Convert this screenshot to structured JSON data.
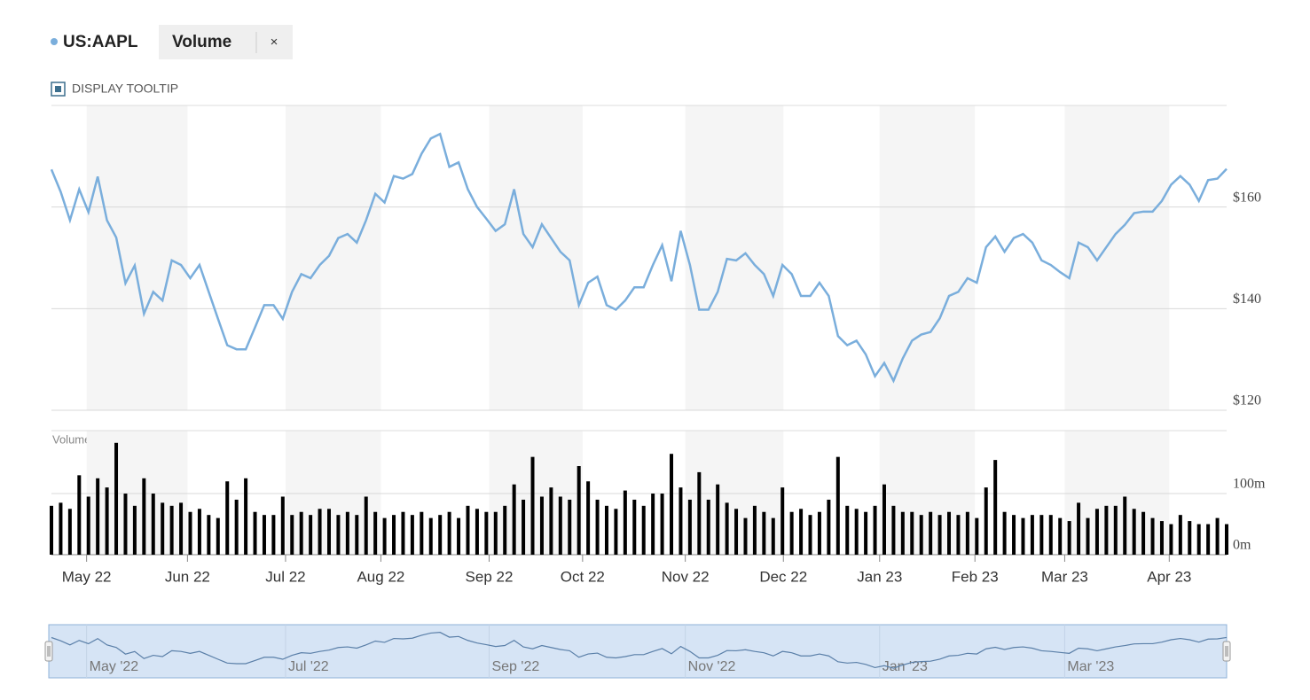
{
  "controls": {
    "close_icon": "×",
    "tooltip_toggle": "DISPLAY TOOLTIP"
  },
  "chart_data": [
    {
      "type": "line",
      "series": [
        {
          "name": "US:AAPL",
          "color": "#7aaedc",
          "values": [
            167.4,
            163,
            157.4,
            163.5,
            159,
            166,
            157.4,
            154,
            145,
            148.5,
            139,
            143.3,
            141.6,
            149.5,
            148.6,
            146,
            148.6,
            143.3,
            138,
            132.8,
            132,
            132,
            136.3,
            140.7,
            140.7,
            138,
            143.3,
            146.8,
            146,
            148.6,
            150.4,
            153.9,
            154.7,
            153,
            157.4,
            162.6,
            160.9,
            166.1,
            165.6,
            166.5,
            170.5,
            173.5,
            174.4,
            167.9,
            168.8,
            163.5,
            160,
            157.7,
            155.3,
            156.6,
            163.5,
            154.7,
            152.1,
            156.6,
            153.9,
            151.2,
            149.5,
            140.7,
            145.1,
            146.3,
            140.7,
            139.8,
            141.6,
            144.2,
            144.2,
            148.6,
            152.5,
            145.4,
            155.3,
            148.6,
            139.8,
            139.8,
            143.3,
            149.8,
            149.5,
            150.9,
            148.6,
            146.8,
            142.5,
            148.6,
            146.8,
            142.5,
            142.5,
            145.1,
            142.5,
            134.6,
            132.8,
            133.7,
            131,
            126.7,
            129.3,
            125.8,
            130.2,
            133.7,
            134.9,
            135.4,
            138.1,
            142.5,
            143.3,
            146,
            145.1,
            152.1,
            154.2,
            151.2,
            153.9,
            154.7,
            153,
            149.5,
            148.6,
            147.2,
            146,
            153,
            152.1,
            149.5,
            152.1,
            154.7,
            156.5,
            158.8,
            159.1,
            159.1,
            161.2,
            164.4,
            166.1,
            164.4,
            161.2,
            165.3,
            165.6,
            167.5
          ]
        }
      ],
      "x": [
        0,
        1,
        2,
        3,
        4,
        5,
        6,
        7,
        8,
        9,
        10,
        11,
        12,
        13,
        14,
        15,
        16,
        17,
        18,
        19,
        20,
        21,
        22,
        23,
        24,
        25,
        26,
        27,
        28,
        29,
        30,
        31,
        32,
        33,
        34,
        35,
        36,
        37,
        38,
        39,
        40,
        41,
        42,
        43,
        44,
        45,
        46,
        47,
        48,
        49,
        50,
        51,
        52,
        53,
        54,
        55,
        56,
        57,
        58,
        59,
        60,
        61,
        62,
        63,
        64,
        65,
        66,
        67,
        68,
        69,
        70,
        71,
        72,
        73,
        74,
        75,
        76,
        77,
        78,
        79,
        80,
        81,
        82,
        83,
        84,
        85,
        86,
        87,
        88,
        89,
        90,
        91,
        92,
        93,
        94,
        95,
        96,
        97,
        98,
        99,
        100,
        101,
        102,
        103,
        104,
        105,
        106,
        107,
        108,
        109,
        110,
        111,
        112,
        113,
        114,
        115,
        116,
        117,
        118,
        119,
        120,
        121,
        122,
        123,
        124,
        125,
        126,
        127
      ],
      "xlim": [
        0,
        127
      ],
      "xticks": [
        {
          "value": 3.8,
          "label": "May 22"
        },
        {
          "value": 14.7,
          "label": "Jun 22"
        },
        {
          "value": 25.3,
          "label": "Jul 22"
        },
        {
          "value": 35.6,
          "label": "Aug 22"
        },
        {
          "value": 47.3,
          "label": "Sep 22"
        },
        {
          "value": 57.4,
          "label": "Oct 22"
        },
        {
          "value": 68.5,
          "label": "Nov 22"
        },
        {
          "value": 79.1,
          "label": "Dec 22"
        },
        {
          "value": 89.5,
          "label": "Jan 23"
        },
        {
          "value": 99.8,
          "label": "Feb 23"
        },
        {
          "value": 109.5,
          "label": "Mar 23"
        },
        {
          "value": 120.8,
          "label": "Apr 23"
        }
      ],
      "navigator_xticks": [
        {
          "value": 3.8,
          "label": "May '22"
        },
        {
          "value": 25.3,
          "label": "Jul '22"
        },
        {
          "value": 47.3,
          "label": "Sep '22"
        },
        {
          "value": 68.5,
          "label": "Nov '22"
        },
        {
          "value": 89.5,
          "label": "Jan '23"
        },
        {
          "value": 109.5,
          "label": "Mar '23"
        }
      ],
      "ylim": [
        120,
        180
      ],
      "yticks": [
        {
          "value": 120,
          "label": "$120"
        },
        {
          "value": 140,
          "label": "$140"
        },
        {
          "value": 160,
          "label": "$160"
        }
      ],
      "grid": true
    },
    {
      "type": "bar",
      "series": [
        {
          "name": "Volume",
          "color": "#000000",
          "values": [
            80,
            85,
            75,
            130,
            95,
            125,
            110,
            183,
            100,
            80,
            125,
            100,
            85,
            80,
            85,
            70,
            75,
            65,
            60,
            120,
            90,
            125,
            70,
            65,
            65,
            95,
            65,
            70,
            65,
            75,
            75,
            65,
            70,
            65,
            95,
            70,
            60,
            65,
            70,
            65,
            70,
            60,
            65,
            70,
            60,
            80,
            75,
            70,
            70,
            80,
            115,
            90,
            160,
            95,
            110,
            95,
            90,
            145,
            120,
            90,
            80,
            75,
            105,
            90,
            80,
            100,
            100,
            165,
            110,
            90,
            135,
            90,
            115,
            85,
            75,
            60,
            80,
            70,
            60,
            110,
            70,
            75,
            65,
            70,
            90,
            160,
            80,
            75,
            70,
            80,
            115,
            80,
            70,
            70,
            65,
            70,
            65,
            70,
            65,
            70,
            60,
            110,
            155,
            70,
            65,
            60,
            65,
            65,
            65,
            60,
            55,
            85,
            60,
            75,
            80,
            80,
            95,
            75,
            70,
            60,
            55,
            50,
            65,
            55,
            50,
            50,
            60,
            50
          ]
        }
      ],
      "ylim": [
        0,
        203
      ],
      "yticks": [
        {
          "value": 0,
          "label": "0m"
        },
        {
          "value": 100,
          "label": "100m"
        }
      ],
      "grid": true
    }
  ]
}
